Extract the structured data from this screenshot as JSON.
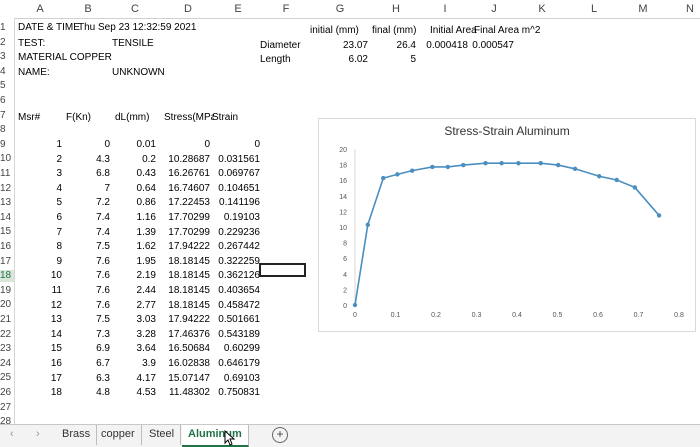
{
  "columns": [
    "A",
    "B",
    "C",
    "D",
    "E",
    "F",
    "G",
    "H",
    "I",
    "J",
    "K",
    "L",
    "M",
    "N"
  ],
  "rows": [
    "1",
    "2",
    "3",
    "4",
    "5",
    "6",
    "7",
    "8",
    "9",
    "10",
    "11",
    "12",
    "13",
    "14",
    "15",
    "16",
    "17",
    "18",
    "19",
    "20",
    "21",
    "22",
    "23",
    "24",
    "25",
    "26",
    "27",
    "28"
  ],
  "info": {
    "date_label": "DATE & TIME",
    "date_value": "Thu Sep 23 12:32:59 2021",
    "test_label": "TEST:",
    "test_value": "TENSILE",
    "material_label": "MATERIAL COPPER",
    "name_label": "NAME:",
    "name_value": "UNKNOWN",
    "diameter_label": "Diameter",
    "length_label": "Length",
    "initial_header": "initial (mm)",
    "final_header": "final (mm)",
    "initial_area_header": "Initial Area",
    "final_area_header": "Final Area m^2",
    "diameter_initial": "23.07",
    "diameter_final": "26.4",
    "initial_area": "0.000418",
    "final_area": "0.000547",
    "length_initial": "6.02",
    "length_final": "5"
  },
  "table": {
    "headers": [
      "Msr#",
      "F(Kn)",
      "dL(mm)",
      "Stress(MPa)",
      "Strain"
    ],
    "header_display": [
      "Msr#",
      "F(Kn)",
      "dL(mm)",
      "Stress(MPa",
      "Strain"
    ],
    "rows": [
      [
        "1",
        "0",
        "0.01",
        "0",
        "0"
      ],
      [
        "2",
        "4.3",
        "0.2",
        "10.28687",
        "0.031561"
      ],
      [
        "3",
        "6.8",
        "0.43",
        "16.26761",
        "0.069767"
      ],
      [
        "4",
        "7",
        "0.64",
        "16.74607",
        "0.104651"
      ],
      [
        "5",
        "7.2",
        "0.86",
        "17.22453",
        "0.141196"
      ],
      [
        "6",
        "7.4",
        "1.16",
        "17.70299",
        "0.19103"
      ],
      [
        "7",
        "7.4",
        "1.39",
        "17.70299",
        "0.229236"
      ],
      [
        "8",
        "7.5",
        "1.62",
        "17.94222",
        "0.267442"
      ],
      [
        "9",
        "7.6",
        "1.95",
        "18.18145",
        "0.322259"
      ],
      [
        "10",
        "7.6",
        "2.19",
        "18.18145",
        "0.362126"
      ],
      [
        "11",
        "7.6",
        "2.44",
        "18.18145",
        "0.403654"
      ],
      [
        "12",
        "7.6",
        "2.77",
        "18.18145",
        "0.458472"
      ],
      [
        "13",
        "7.5",
        "3.03",
        "17.94222",
        "0.501661"
      ],
      [
        "14",
        "7.3",
        "3.28",
        "17.46376",
        "0.543189"
      ],
      [
        "15",
        "6.9",
        "3.64",
        "16.50684",
        "0.60299"
      ],
      [
        "16",
        "6.7",
        "3.9",
        "16.02838",
        "0.646179"
      ],
      [
        "17",
        "6.3",
        "4.17",
        "15.07147",
        "0.69103"
      ],
      [
        "18",
        "4.8",
        "4.53",
        "11.48302",
        "0.750831"
      ]
    ]
  },
  "chart_data": {
    "type": "scatter",
    "title": "Stress-Strain Aluminum",
    "xlabel": "",
    "ylabel": "",
    "xlim": [
      0,
      0.8
    ],
    "ylim": [
      0,
      20
    ],
    "x_ticks": [
      "0",
      "0.1",
      "0.2",
      "0.3",
      "0.4",
      "0.5",
      "0.6",
      "0.7",
      "0.8"
    ],
    "y_ticks": [
      "0",
      "2",
      "4",
      "6",
      "8",
      "10",
      "12",
      "14",
      "16",
      "18",
      "20"
    ],
    "grid": false,
    "legend": "none",
    "series": [
      {
        "color": "#4a8fbf",
        "x": [
          0,
          0.031561,
          0.069767,
          0.104651,
          0.141196,
          0.19103,
          0.229236,
          0.267442,
          0.322259,
          0.362126,
          0.403654,
          0.458472,
          0.501661,
          0.543189,
          0.60299,
          0.646179,
          0.69103,
          0.750831
        ],
        "y": [
          0,
          10.28687,
          16.26761,
          16.74607,
          17.22453,
          17.70299,
          17.70299,
          17.94222,
          18.18145,
          18.18145,
          18.18145,
          18.18145,
          17.94222,
          17.46376,
          16.50684,
          16.02838,
          15.07147,
          11.48302
        ]
      }
    ]
  },
  "sheet_tabs": [
    {
      "label": "Brass",
      "active": false
    },
    {
      "label": "copper",
      "active": false
    },
    {
      "label": "Steel",
      "active": false
    },
    {
      "label": "Aluminum",
      "active": true
    }
  ],
  "nav": {
    "prev": "‹",
    "next": "›",
    "add": "+"
  },
  "selected_row": "18",
  "colors": {
    "accent": "#217346",
    "series": "#4a8fbf"
  }
}
